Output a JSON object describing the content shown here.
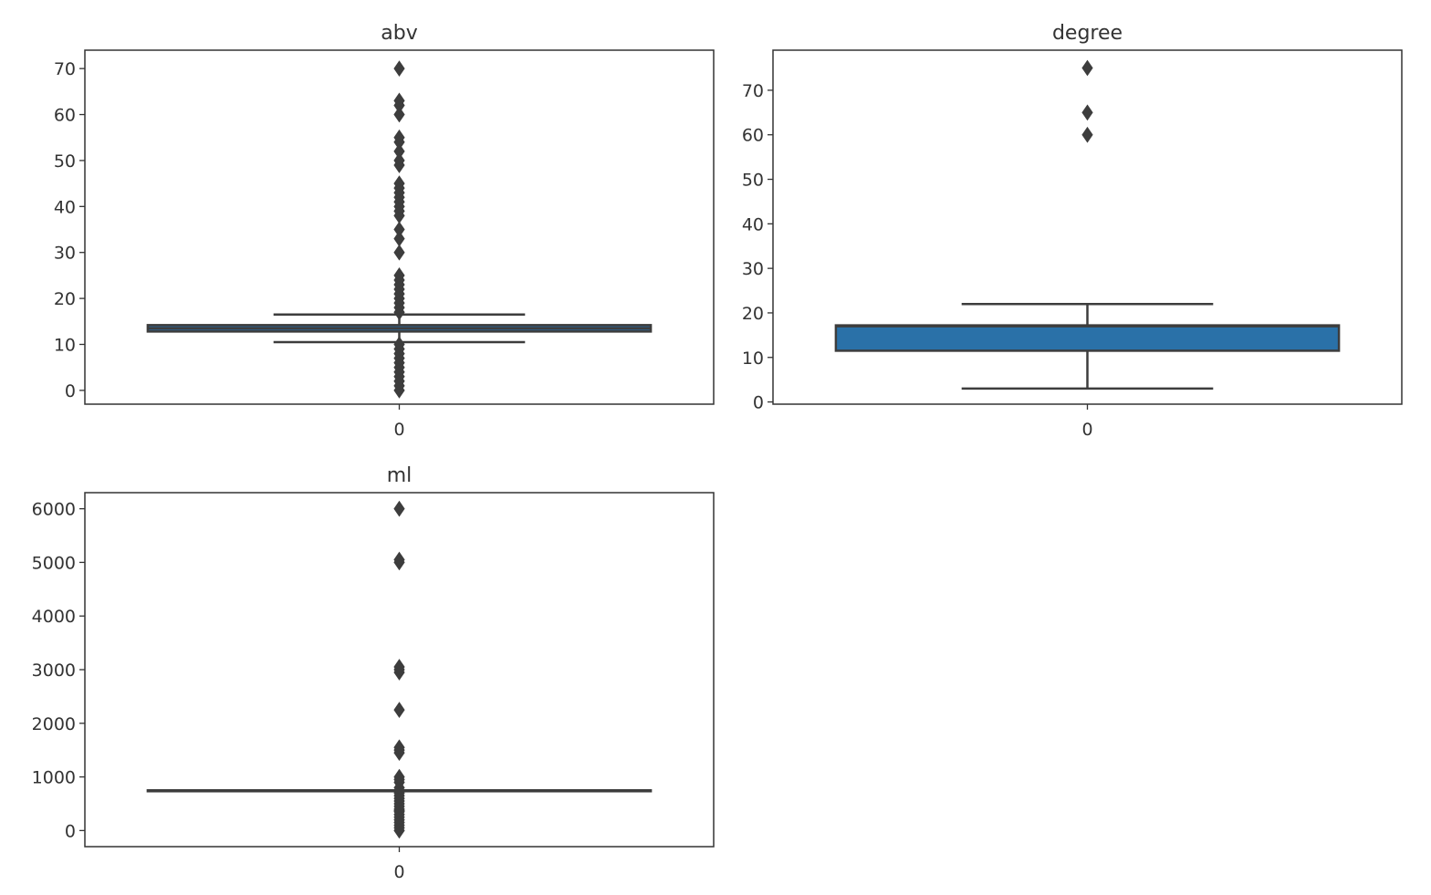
{
  "chart_data": [
    {
      "type": "box",
      "title": "abv",
      "xlabel": "",
      "ylabel": "",
      "categories": [
        "0"
      ],
      "yticks": [
        0,
        10,
        20,
        30,
        40,
        50,
        60,
        70
      ],
      "ylim": [
        -3,
        74
      ],
      "box_color": "#2e5e87",
      "box": {
        "whisker_low": 10.5,
        "q1": 12.8,
        "median": 13.5,
        "q3": 14.2,
        "whisker_high": 16.5
      },
      "outliers": [
        0,
        1,
        2,
        3,
        4,
        5,
        6,
        7,
        8,
        9,
        10,
        17,
        18,
        19,
        20,
        21,
        22,
        23,
        24,
        25,
        30,
        33,
        35,
        38,
        39,
        40,
        41,
        42,
        43,
        44,
        45,
        49,
        50,
        52,
        54,
        55,
        60,
        62,
        63,
        70
      ]
    },
    {
      "type": "box",
      "title": "degree",
      "xlabel": "",
      "ylabel": "",
      "categories": [
        "0"
      ],
      "yticks": [
        0,
        10,
        20,
        30,
        40,
        50,
        60,
        70
      ],
      "ylim": [
        -0.5,
        79
      ],
      "box_color": "#2a71a8",
      "box": {
        "whisker_low": 3,
        "q1": 11.5,
        "median": 17,
        "q3": 17.2,
        "whisker_high": 22
      },
      "outliers": [
        60,
        65,
        75
      ]
    },
    {
      "type": "box",
      "title": "ml",
      "xlabel": "",
      "ylabel": "",
      "categories": [
        "0"
      ],
      "yticks": [
        0,
        1000,
        2000,
        3000,
        4000,
        5000,
        6000
      ],
      "ylim": [
        -300,
        6300
      ],
      "box_color": "#2e5e87",
      "box": {
        "whisker_low": 750,
        "q1": 750,
        "median": 750,
        "q3": 750,
        "whisker_high": 750
      },
      "outliers": [
        0,
        50,
        100,
        150,
        200,
        250,
        300,
        350,
        375,
        400,
        450,
        500,
        550,
        600,
        650,
        700,
        800,
        900,
        950,
        1000,
        1450,
        1500,
        1550,
        2250,
        2950,
        3000,
        3050,
        5000,
        5050,
        6000
      ]
    }
  ]
}
